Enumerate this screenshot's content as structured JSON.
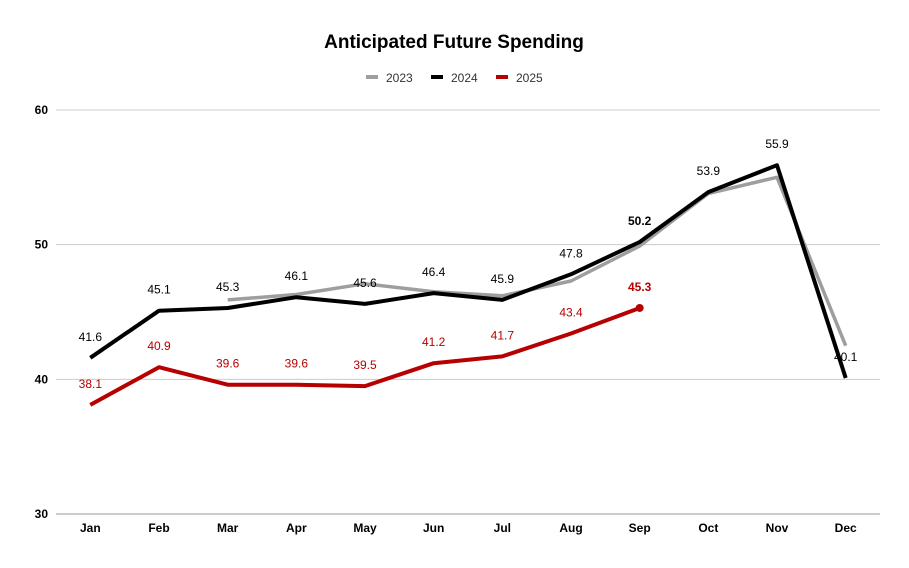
{
  "chart_data": {
    "type": "line",
    "title": "Anticipated Future Spending",
    "xlabel": "",
    "ylabel": "",
    "categories": [
      "Jan",
      "Feb",
      "Mar",
      "Apr",
      "May",
      "Jun",
      "Jul",
      "Aug",
      "Sep",
      "Oct",
      "Nov",
      "Dec"
    ],
    "ylim": [
      30,
      60
    ],
    "yticks": [
      30,
      40,
      50,
      60
    ],
    "grid": true,
    "legend_position": "top-center",
    "series": [
      {
        "name": "2023",
        "color": "#9e9e9e",
        "values": [
          null,
          null,
          45.9,
          46.3,
          47.1,
          46.5,
          46.2,
          47.3,
          49.9,
          53.8,
          55.0,
          42.5
        ],
        "data_labels": [
          null,
          null,
          null,
          null,
          null,
          null,
          null,
          null,
          null,
          null,
          null,
          null
        ]
      },
      {
        "name": "2024",
        "color": "#000000",
        "values": [
          41.6,
          45.1,
          45.3,
          46.1,
          45.6,
          46.4,
          45.9,
          47.8,
          50.2,
          53.9,
          55.9,
          40.1
        ],
        "data_labels": [
          "41.6",
          "45.1",
          "45.3",
          "46.1",
          "45.6",
          "46.4",
          "45.9",
          "47.8",
          "50.2",
          "53.9",
          "55.9",
          "40.1"
        ],
        "bold_label_index": 8
      },
      {
        "name": "2025",
        "color": "#b70000",
        "values": [
          38.1,
          40.9,
          39.6,
          39.6,
          39.5,
          41.2,
          41.7,
          43.4,
          45.3,
          null,
          null,
          null
        ],
        "data_labels": [
          "38.1",
          "40.9",
          "39.6",
          "39.6",
          "39.5",
          "41.2",
          "41.7",
          "43.4",
          "45.3",
          null,
          null,
          null
        ],
        "bold_label_index": 8,
        "end_marker_index": 8
      }
    ]
  }
}
